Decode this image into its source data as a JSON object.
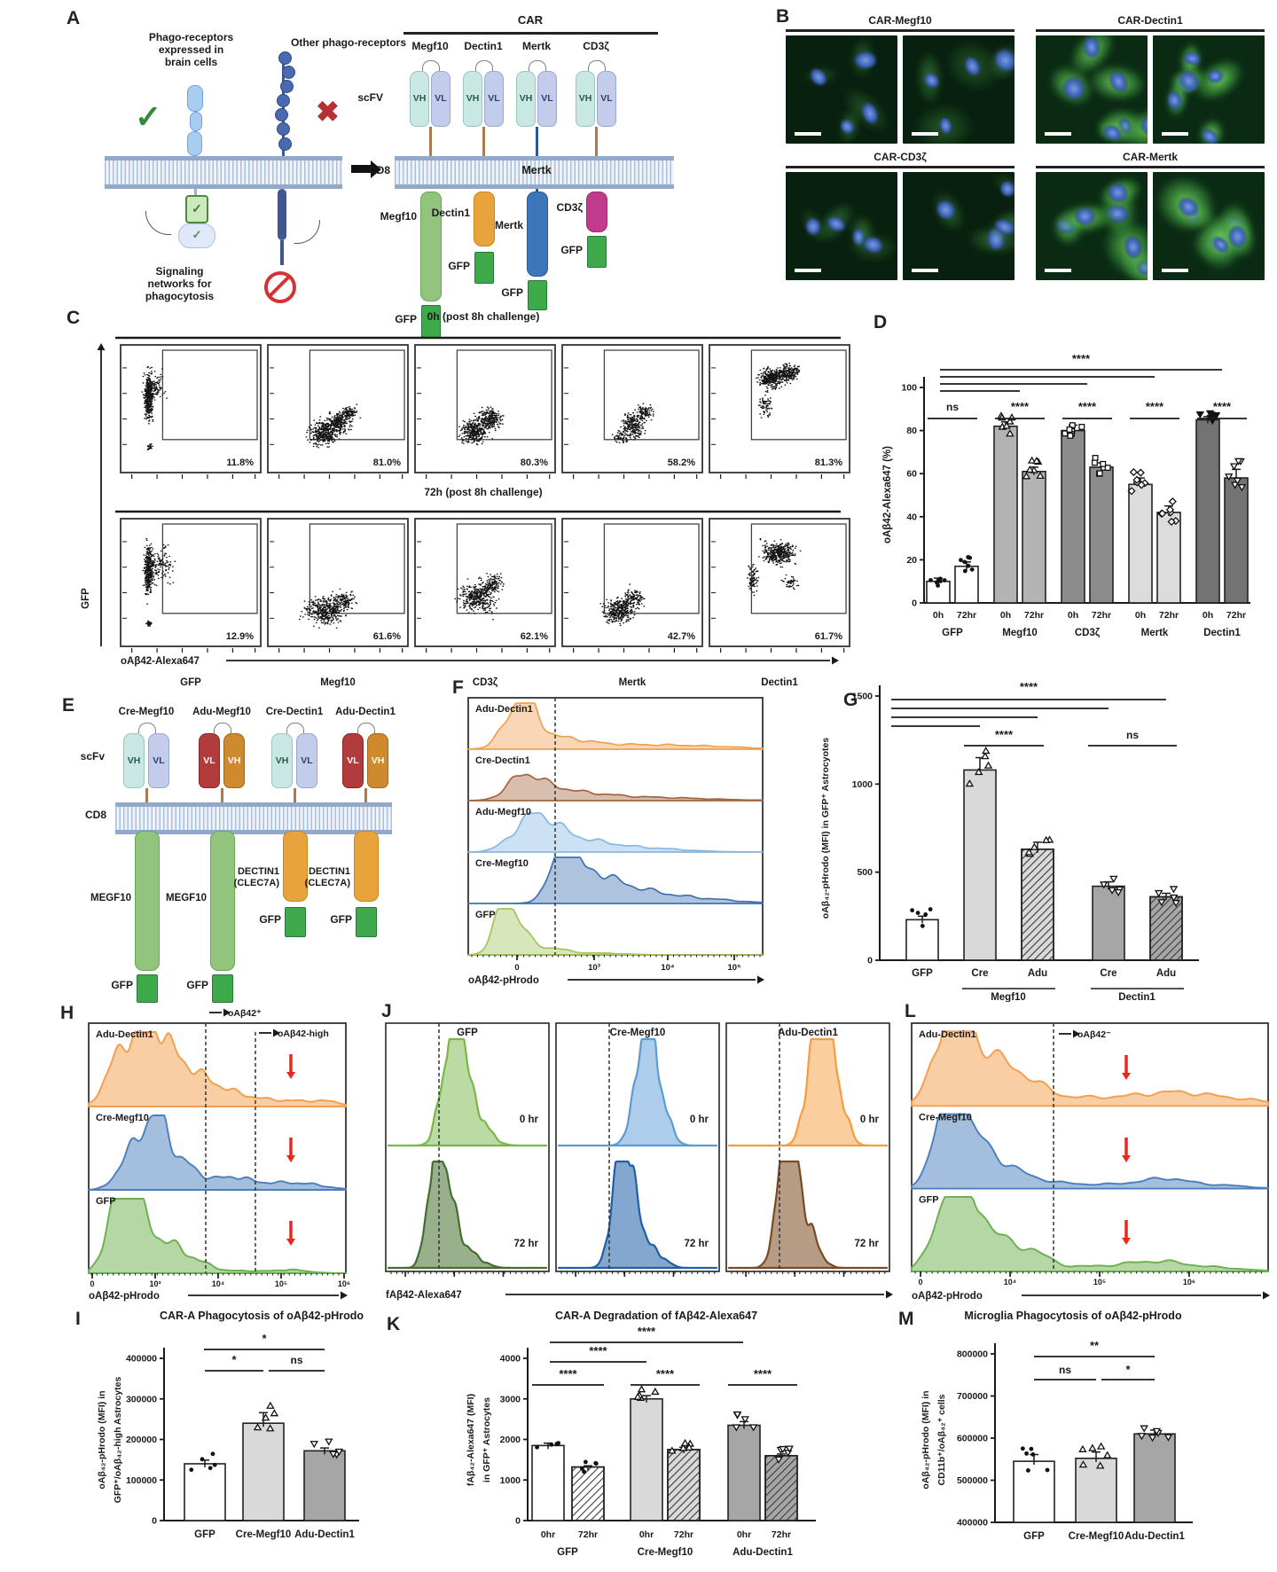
{
  "panels": {
    "A": {
      "letter": "A",
      "left_receptor_title": "Phago-receptors\nexpressed in\nbrain cells",
      "other_receptor_title": "Other phago-receptors",
      "signaling_caption": "Signaling\nnetworks for\nphagocytosis",
      "car_title": "CAR",
      "car_columns": [
        "Megf10",
        "Dectin1",
        "Mertk",
        "CD3ζ"
      ],
      "scfv_label": "scFV",
      "vh_label": "VH",
      "vl_label": "VL",
      "cd8_label": "CD8",
      "membrane_mertk_label": "Mertk",
      "intracellular_domains": [
        "Megf10",
        "Dectin1",
        "Mertk",
        "CD3ζ"
      ],
      "gfp_label": "GFP"
    },
    "B": {
      "letter": "B",
      "image_titles": [
        "CAR-Megf10",
        "CAR-Dectin1",
        "CAR-CD3ζ",
        "CAR-Mertk"
      ]
    },
    "E": {
      "letter": "E",
      "scfv_label": "scFv",
      "cd8_label": "CD8",
      "gfp_label": "GFP",
      "constructs": [
        {
          "title": "Cre-Megf10",
          "left_chain": "VH",
          "right_chain": "VL",
          "domain": "MEGF10"
        },
        {
          "title": "Adu-Megf10",
          "left_chain": "VL",
          "right_chain": "VH",
          "domain": "MEGF10"
        },
        {
          "title": "Cre-Dectin1",
          "left_chain": "VH",
          "right_chain": "VL",
          "domain": "DECTIN1\n(CLEC7A)"
        },
        {
          "title": "Adu-Dectin1",
          "left_chain": "VL",
          "right_chain": "VH",
          "domain": "DECTIN1\n(CLEC7A)"
        }
      ]
    }
  },
  "chart_data": {
    "C": {
      "letter": "C",
      "type": "scatter",
      "row_headers": [
        "0h (post 8h challenge)",
        "72h (post 8h challenge)"
      ],
      "columns": [
        "GFP",
        "Megf10",
        "CD3ζ",
        "Mertk",
        "Dectin1"
      ],
      "xlabel": "oAβ42-Alexa647",
      "ylabel": "GFP",
      "percentages": [
        [
          "11.8%",
          "81.0%",
          "80.3%",
          "58.2%",
          "81.3%"
        ],
        [
          "12.9%",
          "61.6%",
          "62.1%",
          "42.7%",
          "61.7%"
        ]
      ]
    },
    "D": {
      "letter": "D",
      "type": "bar",
      "ylabel": "oAβ42-Alexa647 (%)",
      "ylim": [
        0,
        100
      ],
      "yticks": [
        0,
        20,
        40,
        60,
        80,
        100
      ],
      "groups": [
        "GFP",
        "Megf10",
        "CD3ζ",
        "Mertk",
        "Dectin1"
      ],
      "timepoints": [
        "0h",
        "72hr"
      ],
      "series": [
        {
          "group": "GFP",
          "values": [
            10,
            17
          ]
        },
        {
          "group": "Megf10",
          "values": [
            82,
            61
          ]
        },
        {
          "group": "CD3ζ",
          "values": [
            80,
            63
          ]
        },
        {
          "group": "Mertk",
          "values": [
            55,
            42
          ]
        },
        {
          "group": "Dectin1",
          "values": [
            85,
            58
          ]
        }
      ],
      "errors": [
        [
          1.5,
          2
        ],
        [
          2,
          2
        ],
        [
          2.5,
          2
        ],
        [
          3,
          3
        ],
        [
          1.5,
          4
        ]
      ],
      "sig_overall": "****",
      "sig_pairs": [
        "ns",
        "****",
        "****",
        "****",
        "****"
      ]
    },
    "F": {
      "letter": "F",
      "type": "ridge-histogram",
      "series": [
        {
          "name": "Adu-Dectin1",
          "color": "#f0a050"
        },
        {
          "name": "Cre-Dectin1",
          "color": "#a5643c"
        },
        {
          "name": "Adu-Megf10",
          "color": "#85b8e3"
        },
        {
          "name": "Cre-Megf10",
          "color": "#3f72b0"
        },
        {
          "name": "GFP",
          "color": "#a3c45c"
        }
      ],
      "xticks": [
        "0",
        "10³",
        "10⁴",
        "10⁵"
      ],
      "xlabel": "oAβ42-pHrodo"
    },
    "G": {
      "letter": "G",
      "type": "bar",
      "ylabel": "oAβ₄₂-pHrodo (MFI) in GFP⁺ Astrocyotes",
      "ylim": [
        0,
        1500
      ],
      "yticks": [
        0,
        500,
        1000,
        1500
      ],
      "categories": [
        "GFP",
        "Cre",
        "Adu",
        "Cre",
        "Adu"
      ],
      "group_labels": [
        "Megf10",
        "Dectin1"
      ],
      "values": [
        230,
        1080,
        630,
        420,
        360
      ],
      "errors": [
        20,
        70,
        40,
        25,
        20
      ],
      "sig_overall": "****",
      "sig_megf10": "****",
      "sig_dectin1": "ns"
    },
    "H": {
      "letter": "H",
      "type": "ridge-histogram",
      "series": [
        {
          "name": "Adu-Dectin1",
          "color": "#f59d4a"
        },
        {
          "name": "Cre-Megf10",
          "color": "#4a7ebd"
        },
        {
          "name": "GFP",
          "color": "#6ab04c"
        }
      ],
      "gate_labels": [
        "oAβ42⁺",
        "oAβ42-high"
      ],
      "xticks": [
        "0",
        "10³",
        "10⁴",
        "10⁵",
        "10⁶"
      ],
      "xlabel": "oAβ42-pHrodo"
    },
    "I": {
      "letter": "I",
      "type": "bar",
      "title": "CAR-A Phagocytosis of oAβ42-pHrodo",
      "ylabel_lines": [
        "oAβ₄₂-pHrodo (MFI) in",
        "GFP⁺/oAβ₄₂-high Astrocytes"
      ],
      "ylim": [
        0,
        400000
      ],
      "yticks": [
        0,
        100000,
        200000,
        300000,
        400000
      ],
      "categories": [
        "GFP",
        "Cre-Megf10",
        "Adu-Dectin1"
      ],
      "values": [
        140000,
        240000,
        172000
      ],
      "errors": [
        9000,
        26000,
        7000
      ],
      "sig": [
        {
          "label": "*",
          "between": [
            "GFP",
            "Adu-Dectin1"
          ]
        },
        {
          "label": "*",
          "between": [
            "GFP",
            "Cre-Megf10"
          ]
        },
        {
          "label": "ns",
          "between": [
            "Cre-Megf10",
            "Adu-Dectin1"
          ]
        }
      ]
    },
    "J": {
      "letter": "J",
      "type": "histogram",
      "panel_titles": [
        "GFP",
        "Cre-Megf10",
        "Adu-Dectin1"
      ],
      "timepoint_labels": [
        "0 hr",
        "72 hr"
      ],
      "xlabel": "fAβ42-Alexa647"
    },
    "K": {
      "letter": "K",
      "type": "bar",
      "title": "CAR-A Degradation of fAβ42-Alexa647",
      "ylabel_lines": [
        "fAβ₄₂-Alexa647 (MFI)",
        "in GFP⁺ Astrocytes"
      ],
      "ylim": [
        0,
        4000
      ],
      "yticks": [
        0,
        1000,
        2000,
        3000,
        4000
      ],
      "groups": [
        "GFP",
        "Cre-Megf10",
        "Adu-Dectin1"
      ],
      "timepoints": [
        "0hr",
        "72hr"
      ],
      "series": [
        {
          "group": "GFP",
          "values": [
            1850,
            1320
          ]
        },
        {
          "group": "Cre-Megf10",
          "values": [
            3000,
            1750
          ]
        },
        {
          "group": "Adu-Dectin1",
          "values": [
            2350,
            1600
          ]
        }
      ],
      "errors": [
        [
          60,
          30
        ],
        [
          80,
          60
        ],
        [
          90,
          40
        ]
      ],
      "sig_overall": [
        "****",
        "****"
      ],
      "sig_pairs": [
        "****",
        "****",
        "****"
      ]
    },
    "L": {
      "letter": "L",
      "type": "ridge-histogram",
      "series": [
        {
          "name": "Adu-Dectin1",
          "color": "#f59d4a"
        },
        {
          "name": "Cre-Megf10",
          "color": "#4a7ebd"
        },
        {
          "name": "GFP",
          "color": "#6ab04c"
        }
      ],
      "gate_label": "oAβ42⁻",
      "xticks": [
        "0",
        "10⁴",
        "10⁵",
        "10⁶"
      ],
      "xlabel": "oAβ42-pHrodo"
    },
    "M": {
      "letter": "M",
      "type": "bar",
      "title": "Microglia Phagocytosis of oAβ42-pHrodo",
      "ylabel_lines": [
        "oAβ₄₂-pHrodo (MFI) in",
        "CD11b⁺/oAβ₄₂⁺ cells"
      ],
      "ylim": [
        400000,
        800000
      ],
      "yticks": [
        400000,
        500000,
        600000,
        700000,
        800000
      ],
      "categories": [
        "GFP",
        "Cre-Megf10",
        "Adu-Dectin1"
      ],
      "values": [
        545000,
        552000,
        610000
      ],
      "errors": [
        16000,
        15000,
        9000
      ],
      "sig": [
        {
          "label": "**",
          "between": [
            "GFP",
            "Adu-Dectin1"
          ]
        },
        {
          "label": "ns",
          "between": [
            "GFP",
            "Cre-Megf10"
          ]
        },
        {
          "label": "*",
          "between": [
            "Cre-Megf10",
            "Adu-Dectin1"
          ]
        }
      ]
    }
  },
  "colors": {
    "gfp_green": "#3faa4c",
    "megf10_domain": "#93c47d",
    "dectin1_domain": "#e8a33d",
    "mertk_domain": "#3d76b8",
    "cd3z_domain": "#c13a8c",
    "vh_teal": "#c9e8e3",
    "vl_lavender": "#c3cdeb",
    "adu_vl_red": "#b23b3b",
    "adu_vh_orange": "#d08a2e",
    "red_arrow": "#e8281e"
  }
}
